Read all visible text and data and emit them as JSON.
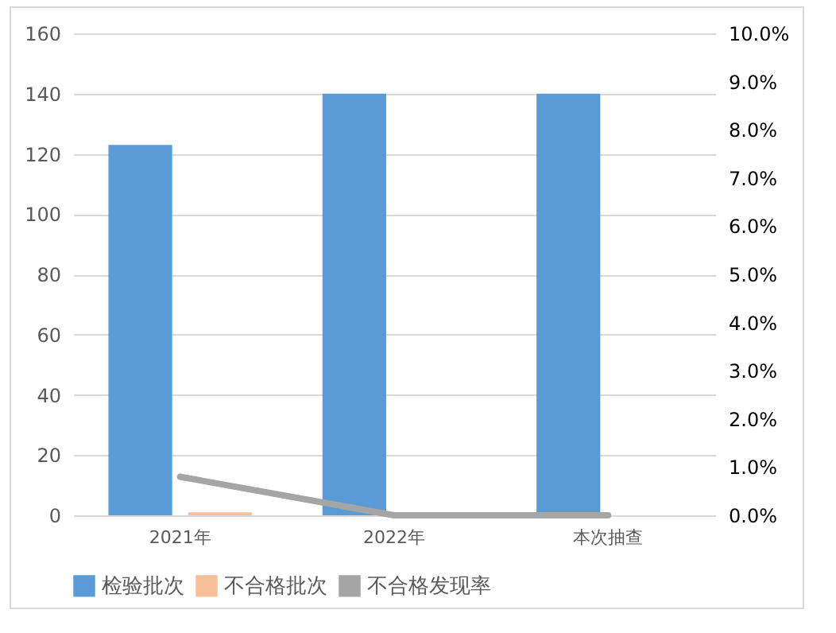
{
  "chart_data": {
    "type": "bar",
    "categories": [
      "2021年",
      "2022年",
      "本次抽查"
    ],
    "series": [
      {
        "name": "检验批次",
        "color": "#5b9bd5",
        "values": [
          123,
          140,
          140
        ]
      },
      {
        "name": "不合格批次",
        "color": "#f8c09a",
        "values": [
          1,
          0,
          0
        ]
      },
      {
        "name": "不合格发现率",
        "type": "line",
        "axis": "y2",
        "color": "#a5a5a5",
        "values": [
          0.8,
          0,
          0
        ]
      }
    ],
    "ylim": [
      0,
      160
    ],
    "yticks": [
      0,
      20,
      40,
      60,
      80,
      100,
      120,
      140,
      160
    ],
    "y2lim": [
      0,
      10
    ],
    "y2ticks": [
      {
        "value": 0,
        "label": "0.0%"
      },
      {
        "value": 1,
        "label": "1.0%"
      },
      {
        "value": 2,
        "label": "2.0%"
      },
      {
        "value": 3,
        "label": "3.0%"
      },
      {
        "value": 4,
        "label": "4.0%"
      },
      {
        "value": 5,
        "label": "5.0%"
      },
      {
        "value": 6,
        "label": "6.0%"
      },
      {
        "value": 7,
        "label": "7.0%"
      },
      {
        "value": 8,
        "label": "8.0%"
      },
      {
        "value": 9,
        "label": "9.0%"
      },
      {
        "value": 10,
        "label": "10.0%"
      }
    ],
    "grid": "y",
    "legend": "bottom",
    "marker": "none",
    "line_style": "solid"
  }
}
